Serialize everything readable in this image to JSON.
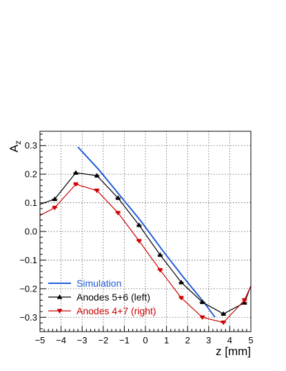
{
  "chart_data": {
    "type": "line",
    "xlabel": "z [mm]",
    "ylabel_main": "A",
    "ylabel_sub": "z",
    "xlim": [
      -5,
      5
    ],
    "ylim": [
      -0.35,
      0.35
    ],
    "xticks": [
      -5,
      -4,
      -3,
      -2,
      -1,
      0,
      1,
      2,
      3,
      4,
      5
    ],
    "xtick_labels": [
      "−5",
      "−4",
      "−3",
      "−2",
      "−1",
      "0",
      "1",
      "2",
      "3",
      "4",
      "5"
    ],
    "yticks": [
      -0.3,
      -0.2,
      -0.1,
      0.0,
      0.1,
      0.2,
      0.3
    ],
    "ytick_labels": [
      "−0.3",
      "−0.2",
      "−0.1",
      "0.0",
      "0.1",
      "0.2",
      "0.3"
    ],
    "grid": true,
    "legend_position": "bottom-left",
    "series": [
      {
        "name": "Simulation",
        "color": "#1f5bd6",
        "marker": "none",
        "x": [
          -3.2,
          -2.2,
          -1.2,
          -0.2,
          0.8,
          1.8,
          2.8,
          3.3
        ],
        "y": [
          0.295,
          0.215,
          0.125,
          0.035,
          -0.065,
          -0.16,
          -0.25,
          -0.3
        ]
      },
      {
        "name": "Anodes 5+6 (left)",
        "color": "#000000",
        "marker": "triangle-up",
        "x": [
          -5,
          -4.3,
          -3.3,
          -2.3,
          -1.3,
          -0.3,
          0.7,
          1.7,
          2.7,
          3.7,
          4.7,
          5
        ],
        "y": [
          0.095,
          0.113,
          0.205,
          0.195,
          0.117,
          0.022,
          -0.082,
          -0.178,
          -0.247,
          -0.288,
          -0.249,
          -0.19
        ]
      },
      {
        "name": "Anodes 4+7 (right)",
        "color": "#cc0000",
        "marker": "triangle-down",
        "x": [
          -5,
          -4.3,
          -3.3,
          -2.3,
          -1.3,
          -0.3,
          0.7,
          1.7,
          2.7,
          3.7,
          4.7,
          5
        ],
        "y": [
          0.056,
          0.083,
          0.165,
          0.143,
          0.065,
          -0.033,
          -0.135,
          -0.232,
          -0.3,
          -0.318,
          -0.24,
          -0.19
        ]
      }
    ]
  }
}
